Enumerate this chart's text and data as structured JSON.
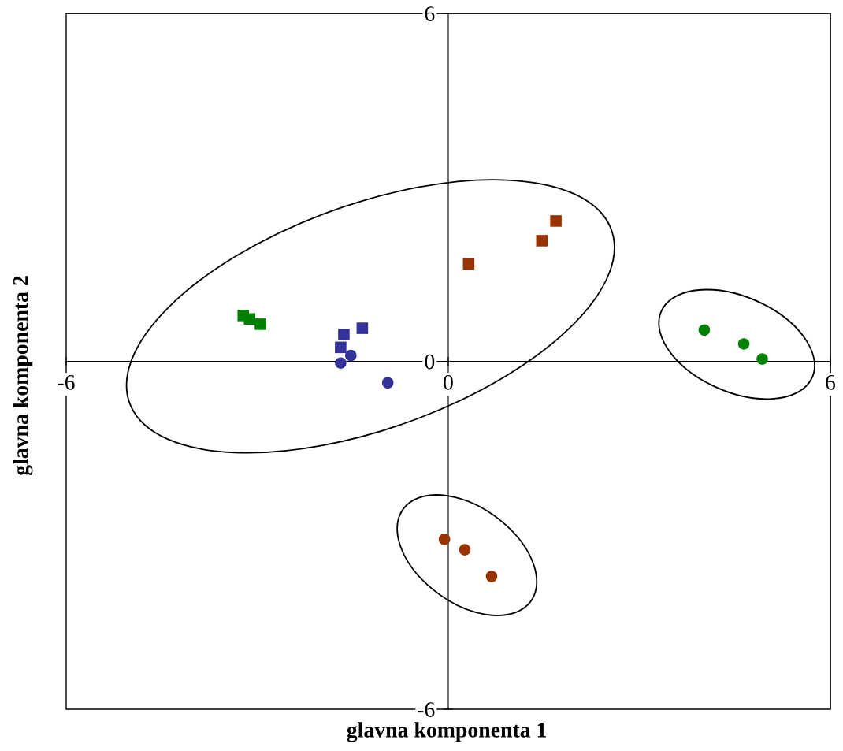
{
  "chart_data": {
    "type": "scatter",
    "xlabel": "glavna komponenta 1",
    "ylabel": "glavna komponenta 2",
    "xlim": [
      -6,
      6
    ],
    "ylim": [
      -6,
      6
    ],
    "xticks": [
      -6,
      0,
      6
    ],
    "yticks": [
      -6,
      0,
      6
    ],
    "grid": false,
    "legend": false,
    "series": [
      {
        "color": "#008000",
        "marker": "square",
        "x": [
          -3.22,
          -3.12,
          -2.95
        ],
        "values": [
          0.79,
          0.73,
          0.64
        ]
      },
      {
        "color": "#333399",
        "marker": "square",
        "x": [
          -1.64,
          -1.69,
          -1.35
        ],
        "values": [
          0.46,
          0.24,
          0.57
        ]
      },
      {
        "color": "#333399",
        "marker": "circle",
        "x": [
          -1.69,
          -1.53,
          -0.95
        ],
        "values": [
          -0.03,
          0.1,
          -0.37
        ]
      },
      {
        "color": "#993300",
        "marker": "square",
        "x": [
          0.32,
          1.47,
          1.69
        ],
        "values": [
          1.68,
          2.08,
          2.42
        ]
      },
      {
        "color": "#008000",
        "marker": "circle",
        "x": [
          4.02,
          4.64,
          4.93
        ],
        "values": [
          0.54,
          0.3,
          0.04
        ]
      },
      {
        "color": "#993300",
        "marker": "circle",
        "x": [
          -0.06,
          0.26,
          0.68
        ],
        "values": [
          -3.07,
          -3.25,
          -3.71
        ]
      }
    ]
  }
}
